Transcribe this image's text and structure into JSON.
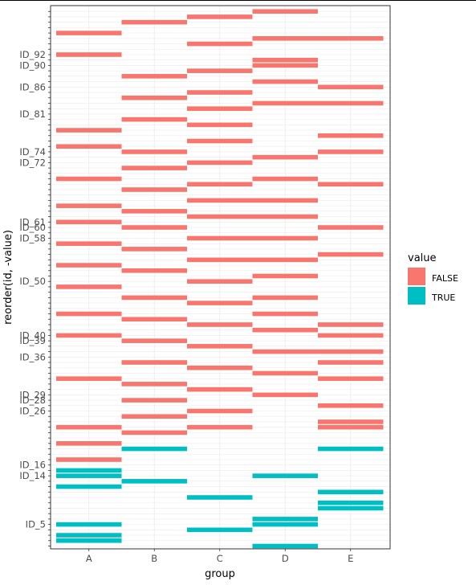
{
  "chart_data": {
    "type": "heatmap",
    "xlabel": "group",
    "ylabel": "reorder(id, -value)",
    "categories": [
      "A",
      "B",
      "C",
      "D",
      "E"
    ],
    "y_labels": [
      {
        "rank": 5,
        "label": "ID_5"
      },
      {
        "rank": 14,
        "label": "ID_14"
      },
      {
        "rank": 16,
        "label": "ID_16"
      },
      {
        "rank": 26,
        "label": "ID_26"
      },
      {
        "rank": 28,
        "label": "ID_28"
      },
      {
        "rank": 29,
        "label": "ID_29"
      },
      {
        "rank": 36,
        "label": "ID_36"
      },
      {
        "rank": 39,
        "label": "ID_39"
      },
      {
        "rank": 40,
        "label": "ID_40"
      },
      {
        "rank": 50,
        "label": "ID_50"
      },
      {
        "rank": 58,
        "label": "ID_58"
      },
      {
        "rank": 60,
        "label": "ID_60"
      },
      {
        "rank": 61,
        "label": "ID_61"
      },
      {
        "rank": 72,
        "label": "ID_72"
      },
      {
        "rank": 74,
        "label": "ID_74"
      },
      {
        "rank": 81,
        "label": "ID_81"
      },
      {
        "rank": 86,
        "label": "ID_86"
      },
      {
        "rank": 90,
        "label": "ID_90"
      },
      {
        "rank": 92,
        "label": "ID_92"
      }
    ],
    "y_count": 100,
    "legend": {
      "title": "value",
      "entries": [
        {
          "label": "FALSE",
          "color": "#F8766D"
        },
        {
          "label": "TRUE",
          "color": "#00BFC4"
        }
      ],
      "position": "right"
    },
    "cells": {
      "A": {
        "FALSE": [
          96,
          92,
          78,
          75,
          69,
          64,
          61,
          57,
          53,
          49,
          44,
          40,
          32,
          23,
          20,
          17
        ],
        "TRUE": [
          15,
          14,
          12,
          5,
          3,
          2
        ]
      },
      "B": {
        "FALSE": [
          98,
          88,
          84,
          80,
          74,
          71,
          67,
          63,
          60,
          56,
          52,
          47,
          43,
          39,
          35,
          31,
          28,
          25,
          22
        ],
        "TRUE": [
          19,
          13
        ]
      },
      "C": {
        "FALSE": [
          99,
          94,
          89,
          85,
          82,
          79,
          76,
          72,
          68,
          65,
          62,
          58,
          54,
          50,
          46,
          42,
          38,
          34,
          30,
          26,
          23
        ],
        "TRUE": [
          10,
          4
        ]
      },
      "D": {
        "FALSE": [
          100,
          95,
          91,
          90,
          87,
          83,
          73,
          69,
          65,
          62,
          58,
          54,
          51,
          47,
          44,
          41,
          37,
          33,
          29
        ],
        "TRUE": [
          14,
          6,
          5,
          1
        ]
      },
      "E": {
        "FALSE": [
          95,
          86,
          83,
          77,
          74,
          68,
          60,
          55,
          42,
          40,
          37,
          35,
          32,
          27,
          24,
          23
        ],
        "TRUE": [
          19,
          11,
          9,
          8
        ]
      }
    }
  }
}
